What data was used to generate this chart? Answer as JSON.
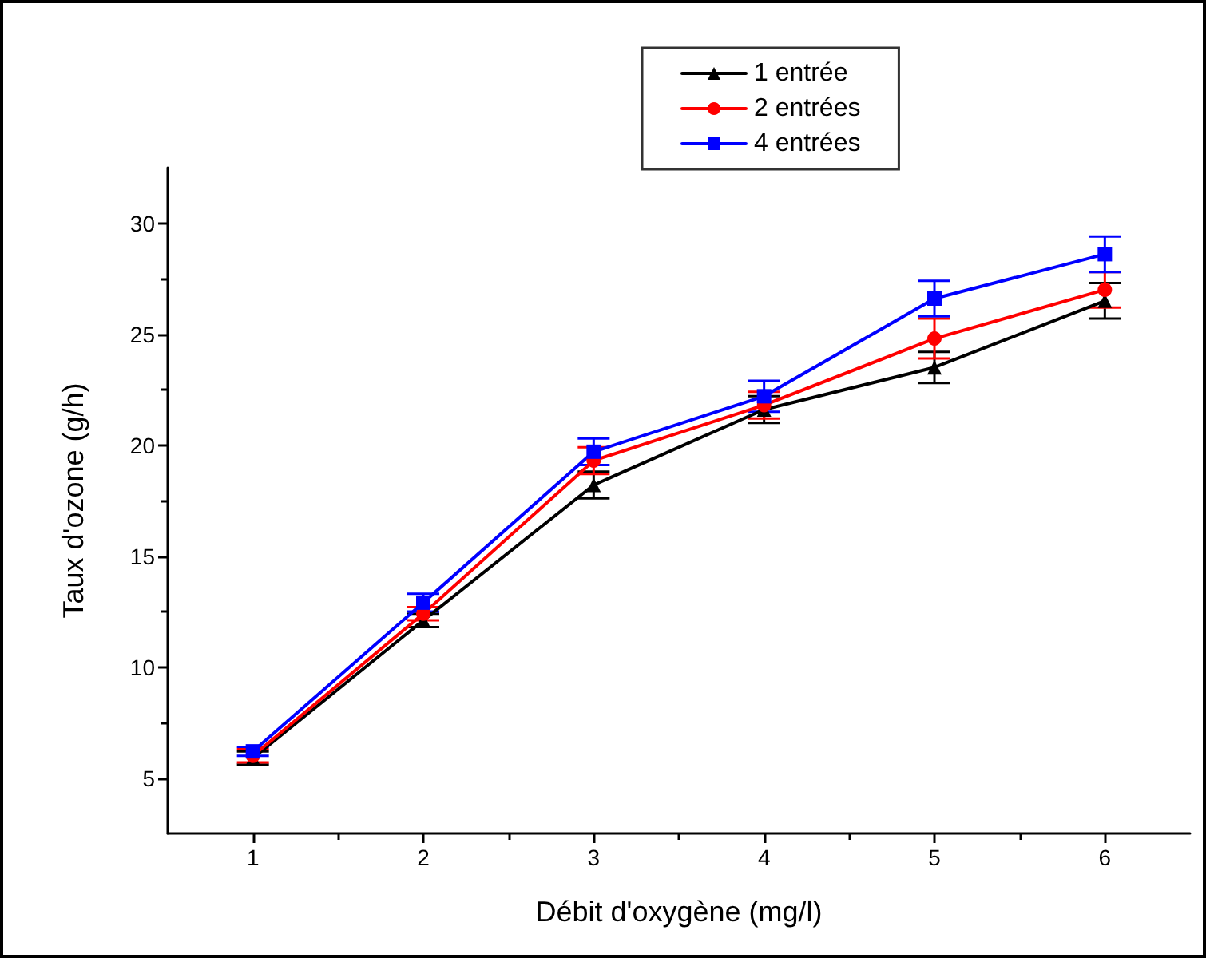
{
  "chart_data": {
    "type": "line",
    "xlabel": "Débit d'oxygène (mg/l)",
    "ylabel": "Taux d'ozone (g/h)",
    "x": [
      1,
      2,
      3,
      4,
      5,
      6
    ],
    "xlim": [
      0.5,
      6.5
    ],
    "xticks": [
      1,
      2,
      3,
      4,
      5,
      6
    ],
    "ylim": [
      2.5,
      32.5
    ],
    "yticks": [
      5,
      10,
      15,
      20,
      25,
      30
    ],
    "grid": false,
    "legend": "top",
    "line_style": "solid",
    "series": [
      {
        "name": "1 entrée",
        "color": "#000000",
        "marker": "triangle",
        "values": [
          5.9,
          12.1,
          18.2,
          21.6,
          23.5,
          26.5
        ],
        "errors": [
          0.3,
          0.3,
          0.6,
          0.6,
          0.7,
          0.8
        ]
      },
      {
        "name": "2 entrées",
        "color": "#ff0000",
        "marker": "circle",
        "values": [
          6.0,
          12.4,
          19.3,
          21.8,
          24.8,
          27.0
        ],
        "errors": [
          0.3,
          0.3,
          0.6,
          0.6,
          0.9,
          0.8
        ]
      },
      {
        "name": "4 entrées",
        "color": "#0000ff",
        "marker": "square",
        "values": [
          6.2,
          12.9,
          19.7,
          22.2,
          26.6,
          28.6
        ],
        "errors": [
          0.2,
          0.4,
          0.6,
          0.7,
          0.8,
          0.8
        ]
      }
    ]
  }
}
